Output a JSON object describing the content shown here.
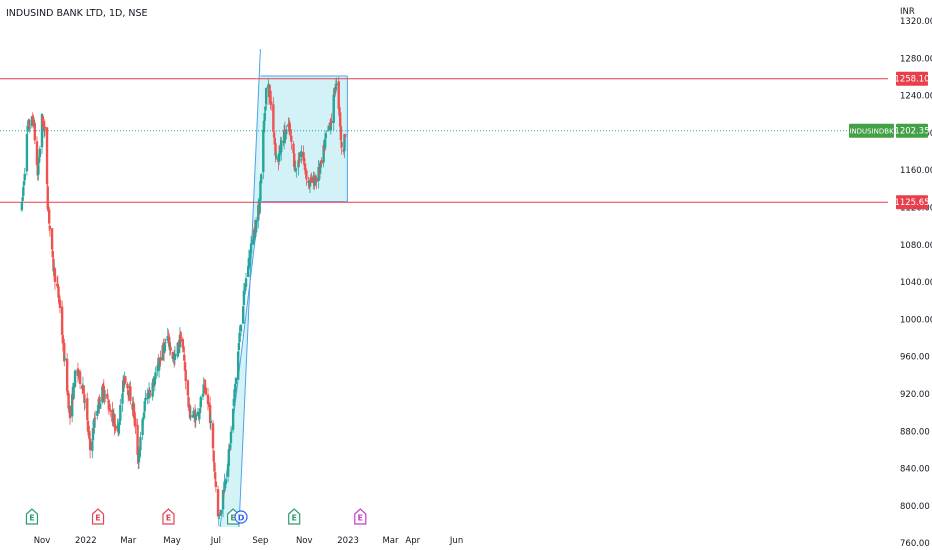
{
  "title": "INDUSIND BANK LTD, 1D, NSE",
  "currency": "INR",
  "colors": {
    "up": "#26a69a",
    "down": "#ef5350",
    "channel_fill": "#cdf1f6",
    "channel_line": "#4da3e8",
    "level_line": "#e83f4a",
    "price_line": "#26a69a",
    "badge_red": "#e83f4a",
    "badge_green": "#43a047",
    "event_earnings_green": "#2e9d6e",
    "event_earnings_red": "#e04555",
    "event_dividend": "#2962ff",
    "event_earnings_purple": "#c23ec9"
  },
  "chart_data": {
    "type": "candlestick",
    "y_ticks": [
      "1320.00",
      "1280.00",
      "1240.00",
      "1200.00",
      "1160.00",
      "1120.00",
      "1080.00",
      "1040.00",
      "1000.00",
      "960.00",
      "920.00",
      "880.00",
      "840.00",
      "800.00",
      "760.00"
    ],
    "x_ticks": [
      "Nov",
      "2022",
      "Mar",
      "May",
      "Jul",
      "Sep",
      "Nov",
      "2023",
      "Mar",
      "Apr",
      "Jun"
    ],
    "x_range": [
      "2021-10-04",
      "2023-06-30"
    ],
    "y_range": [
      748,
      1335
    ],
    "resistance": {
      "value": 1258.1,
      "label": "1258.10"
    },
    "support": {
      "value": 1125.65,
      "label": "1125.65"
    },
    "last_price": {
      "symbol": "INDUSINDBK",
      "value": 1202.35,
      "label": "1202.35"
    },
    "rising_channel": {
      "lower": [
        [
          "2022-07-01",
          740
        ],
        [
          "2022-08-31",
          1125.65
        ]
      ],
      "upper": [
        [
          "2022-07-31",
          740
        ],
        [
          "2022-09-01",
          1290
        ]
      ]
    },
    "range_box": {
      "start": "2022-09-01",
      "end": "2022-12-31",
      "top": 1261,
      "bottom": 1126
    },
    "path_points": [
      [
        "2021-10-04",
        1120
      ],
      [
        "2021-10-12",
        1205
      ],
      [
        "2021-10-20",
        1215
      ],
      [
        "2021-10-26",
        1155
      ],
      [
        "2021-11-01",
        1215
      ],
      [
        "2021-11-06",
        1195
      ],
      [
        "2021-11-09",
        1125
      ],
      [
        "2021-11-16",
        1060
      ],
      [
        "2021-11-25",
        1020
      ],
      [
        "2021-12-02",
        960
      ],
      [
        "2021-12-10",
        895
      ],
      [
        "2021-12-18",
        945
      ],
      [
        "2021-12-28",
        930
      ],
      [
        "2022-01-07",
        860
      ],
      [
        "2022-01-15",
        900
      ],
      [
        "2022-01-25",
        925
      ],
      [
        "2022-02-03",
        905
      ],
      [
        "2022-02-14",
        880
      ],
      [
        "2022-02-24",
        940
      ],
      [
        "2022-03-08",
        905
      ],
      [
        "2022-03-15",
        850
      ],
      [
        "2022-03-25",
        915
      ],
      [
        "2022-04-07",
        935
      ],
      [
        "2022-04-15",
        960
      ],
      [
        "2022-04-25",
        980
      ],
      [
        "2022-05-04",
        955
      ],
      [
        "2022-05-14",
        985
      ],
      [
        "2022-05-25",
        900
      ],
      [
        "2022-06-05",
        895
      ],
      [
        "2022-06-14",
        925
      ],
      [
        "2022-06-22",
        905
      ],
      [
        "2022-06-30",
        830
      ],
      [
        "2022-07-05",
        785
      ],
      [
        "2022-07-12",
        820
      ],
      [
        "2022-07-20",
        860
      ],
      [
        "2022-07-28",
        930
      ],
      [
        "2022-08-05",
        1000
      ],
      [
        "2022-08-14",
        1055
      ],
      [
        "2022-08-22",
        1090
      ],
      [
        "2022-08-30",
        1120
      ],
      [
        "2022-09-05",
        1200
      ],
      [
        "2022-09-10",
        1258
      ],
      [
        "2022-09-16",
        1230
      ],
      [
        "2022-09-24",
        1165
      ],
      [
        "2022-10-02",
        1195
      ],
      [
        "2022-10-11",
        1205
      ],
      [
        "2022-10-20",
        1160
      ],
      [
        "2022-10-28",
        1180
      ],
      [
        "2022-11-07",
        1145
      ],
      [
        "2022-11-17",
        1150
      ],
      [
        "2022-11-25",
        1165
      ],
      [
        "2022-12-02",
        1200
      ],
      [
        "2022-12-09",
        1215
      ],
      [
        "2022-12-15",
        1255
      ],
      [
        "2022-12-20",
        1225
      ],
      [
        "2022-12-24",
        1165
      ],
      [
        "2022-12-28",
        1202
      ]
    ],
    "events": [
      {
        "letter": "E",
        "date": "2021-10-18",
        "kind": "earnings_green"
      },
      {
        "letter": "E",
        "date": "2022-01-18",
        "kind": "earnings_red"
      },
      {
        "letter": "E",
        "date": "2022-04-26",
        "kind": "earnings_red"
      },
      {
        "letter": "E",
        "date": "2022-07-25",
        "kind": "earnings_green"
      },
      {
        "letter": "D",
        "date": "2022-08-05",
        "kind": "dividend"
      },
      {
        "letter": "E",
        "date": "2022-10-18",
        "kind": "earnings_green"
      },
      {
        "letter": "E",
        "date": "2023-01-18",
        "kind": "earnings_purple"
      }
    ]
  }
}
